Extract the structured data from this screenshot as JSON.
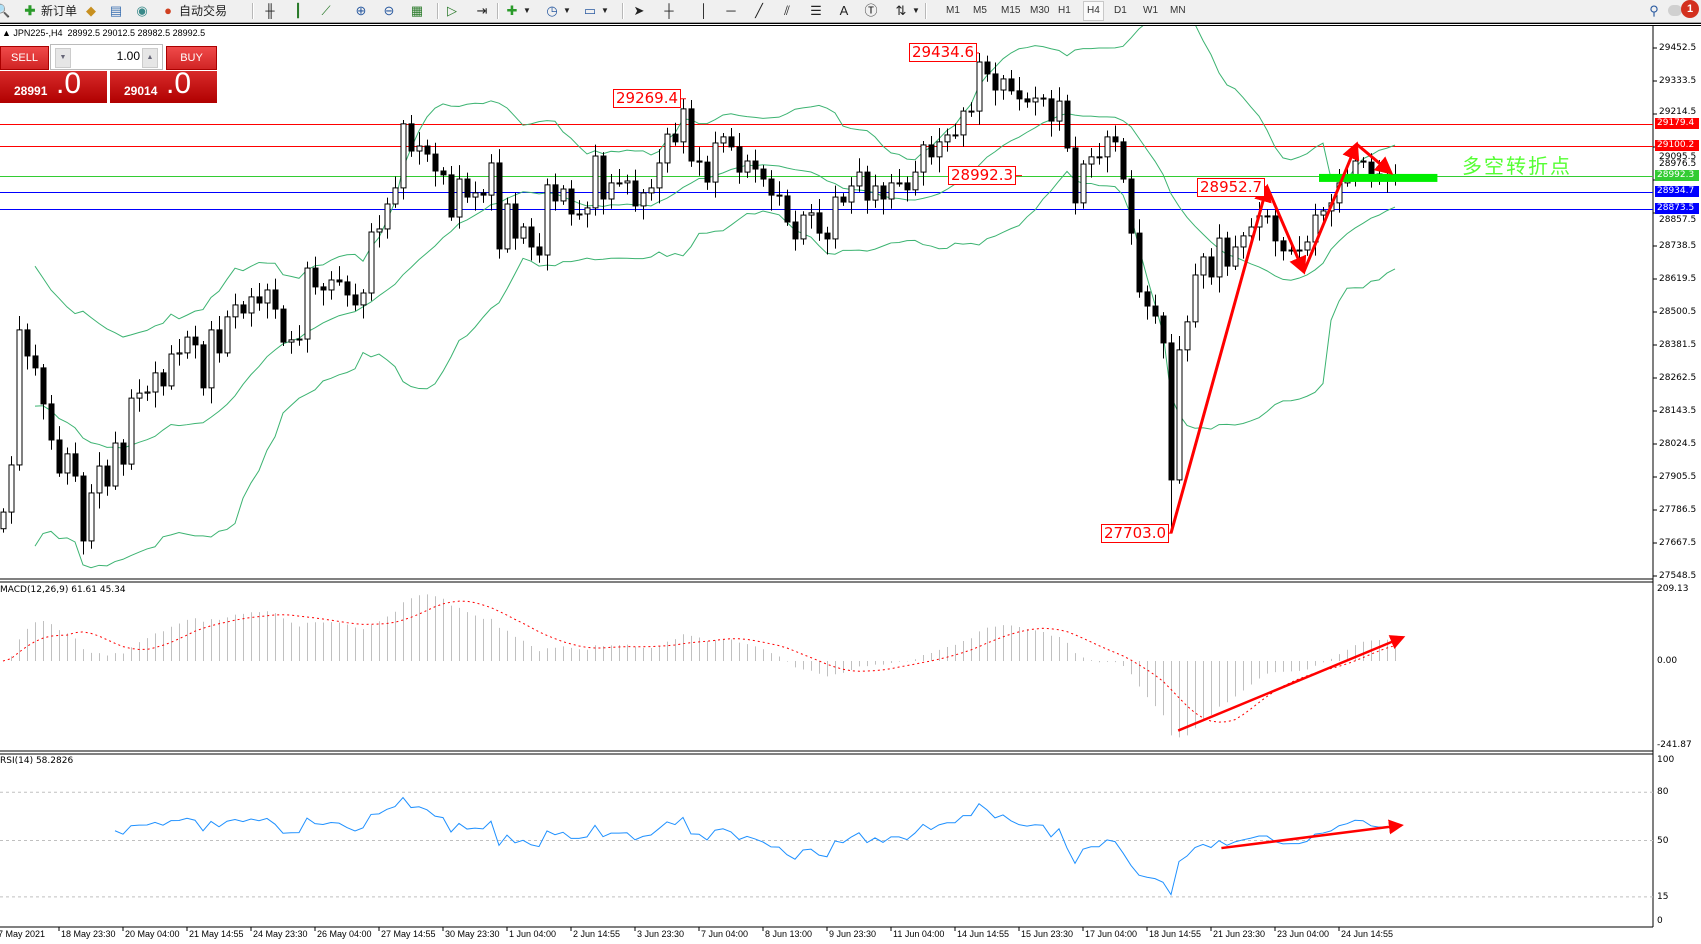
{
  "toolbar": {
    "new_order": "新订单",
    "autotrade": "自动交易",
    "timeframes": [
      "M1",
      "M5",
      "M15",
      "M30",
      "H1",
      "H4",
      "D1",
      "W1",
      "MN"
    ],
    "active_timeframe": "H4",
    "notification_count": "1"
  },
  "chart": {
    "symbol": "JPN225-,H4",
    "ohlc": "28992.5 29012.5 28982.5 28992.5"
  },
  "trade_panel": {
    "sell_label": "SELL",
    "buy_label": "BUY",
    "lots": "1.00",
    "sell_price_main": "28991",
    "sell_price_frac": ".0",
    "buy_price_main": "29014",
    "buy_price_frac": ".0"
  },
  "price_axis": [
    "29452.5",
    "29333.5",
    "29214.5",
    "29095.5",
    "28976.5",
    "28857.5",
    "28738.5",
    "28619.5",
    "28500.5",
    "28381.5",
    "28262.5",
    "28143.5",
    "28024.5",
    "27905.5",
    "27786.5",
    "27667.5",
    "27548.5"
  ],
  "price_levels": [
    {
      "value": "29179.4",
      "color": "#ff0000"
    },
    {
      "value": "29100.2",
      "color": "#ff0000"
    },
    {
      "value": "28992.3",
      "color": "#33cc33"
    },
    {
      "value": "28934.7",
      "color": "#0000ff"
    },
    {
      "value": "28873.5",
      "color": "#0000ff"
    }
  ],
  "annotations": {
    "high_1": "29269.4",
    "high_2": "29434.6",
    "level_label": "28992.3",
    "swing_high": "28952.7",
    "low": "27703.0",
    "note": "多空转折点"
  },
  "macd": {
    "title": "MACD(12,26,9) 61.61 45.34",
    "axis": [
      "209.13",
      "0.00",
      "-241.87"
    ]
  },
  "rsi": {
    "title": "RSI(14) 58.2826",
    "axis": [
      "100",
      "80",
      "50",
      "15",
      "0"
    ],
    "levels": [
      80,
      50,
      15
    ]
  },
  "time_axis": [
    "7 May 2021",
    "18 May 23:30",
    "20 May 04:00",
    "21 May 14:55",
    "24 May 23:30",
    "26 May 04:00",
    "27 May 14:55",
    "30 May 23:30",
    "1 Jun 04:00",
    "2 Jun 14:55",
    "3 Jun 23:30",
    "7 Jun 04:00",
    "8 Jun 13:00",
    "9 Jun 23:30",
    "11 Jun 04:00",
    "14 Jun 14:55",
    "15 Jun 23:30",
    "17 Jun 04:00",
    "18 Jun 14:55",
    "21 Jun 23:30",
    "23 Jun 04:00",
    "24 Jun 14:55"
  ],
  "colors": {
    "bollinger": "#3cb371",
    "macd_hist": "#c0c0c0",
    "macd_signal": "#ff0000",
    "rsi": "#1e90ff",
    "arrows": "#ff0000",
    "pivot_bar": "#00ee00"
  },
  "chart_data": {
    "type": "candlestick",
    "timeframe": "H4",
    "ylim": [
      27548.5,
      29452.5
    ],
    "indicators": [
      "Bollinger Bands(20,2)",
      "MACD(12,26,9)",
      "RSI(14)"
    ],
    "closes": [
      27779,
      27949,
      28436,
      28342,
      28299,
      28169,
      28039,
      27920,
      27989,
      27909,
      27675,
      27848,
      27945,
      27873,
      28028,
      27952,
      28190,
      28208,
      28212,
      28281,
      28234,
      28349,
      28353,
      28410,
      28382,
      28227,
      28436,
      28353,
      28483,
      28526,
      28497,
      28555,
      28533,
      28580,
      28511,
      28392,
      28400,
      28403,
      28659,
      28591,
      28580,
      28616,
      28609,
      28562,
      28526,
      28569,
      28789,
      28800,
      28890,
      28948,
      29179,
      29081,
      29099,
      29070,
      29009,
      28995,
      28843,
      28980,
      28915,
      28930,
      28922,
      29038,
      28728,
      28890,
      28767,
      28807,
      28735,
      28706,
      28959,
      28901,
      28944,
      28854,
      28854,
      28876,
      29063,
      28908,
      28966,
      28966,
      28973,
      28883,
      28930,
      28948,
      29038,
      29142,
      29114,
      29233,
      29045,
      29041,
      28969,
      29110,
      29132,
      29096,
      29005,
      29045,
      29016,
      28980,
      28922,
      28919,
      28825,
      28764,
      28850,
      28858,
      28785,
      28764,
      28915,
      28897,
      28955,
      29005,
      28904,
      28955,
      28908,
      28966,
      28966,
      28941,
      29005,
      29103,
      29060,
      29114,
      29139,
      29139,
      29225,
      29225,
      29402,
      29359,
      29301,
      29341,
      29298,
      29269,
      29258,
      29272,
      29269,
      29189,
      29261,
      29092,
      28894,
      29034,
      29060,
      29060,
      29132,
      29114,
      28980,
      28785,
      28573,
      28522,
      28486,
      28389,
      27895,
      28364,
      28465,
      28634,
      28699,
      28627,
      28767,
      28666,
      28735,
      28775,
      28807,
      28847,
      28847,
      28757,
      28721,
      28724,
      28724,
      28753,
      28850,
      28865,
      28894,
      28966,
      28995,
      29045,
      29041,
      28998,
      28987,
      28991,
      28992.5
    ],
    "marked_extremes": [
      {
        "bar": 85,
        "high": 29269.4
      },
      {
        "bar": 122,
        "high": 29434.6
      },
      {
        "bar": 146,
        "low": 27703.0
      }
    ],
    "price_arrows": [
      [
        [
          146,
          27703.0
        ],
        [
          158,
          28952.7
        ]
      ],
      [
        [
          158,
          28952.7
        ],
        [
          162.6,
          28645
        ]
      ],
      [
        [
          162.6,
          28645
        ],
        [
          169.2,
          29106
        ]
      ],
      [
        [
          169.2,
          29106
        ],
        [
          173.5,
          29002
        ]
      ]
    ],
    "pivot_bar": {
      "from_bar": 164.5,
      "to_bar": 179.3,
      "price": 28984
    },
    "macd_arrow": [
      [
        146.9,
        -202
      ],
      [
        175,
        69
      ]
    ],
    "rsi_arrow": [
      [
        152.3,
        45.3
      ],
      [
        174.8,
        59.4
      ]
    ]
  }
}
